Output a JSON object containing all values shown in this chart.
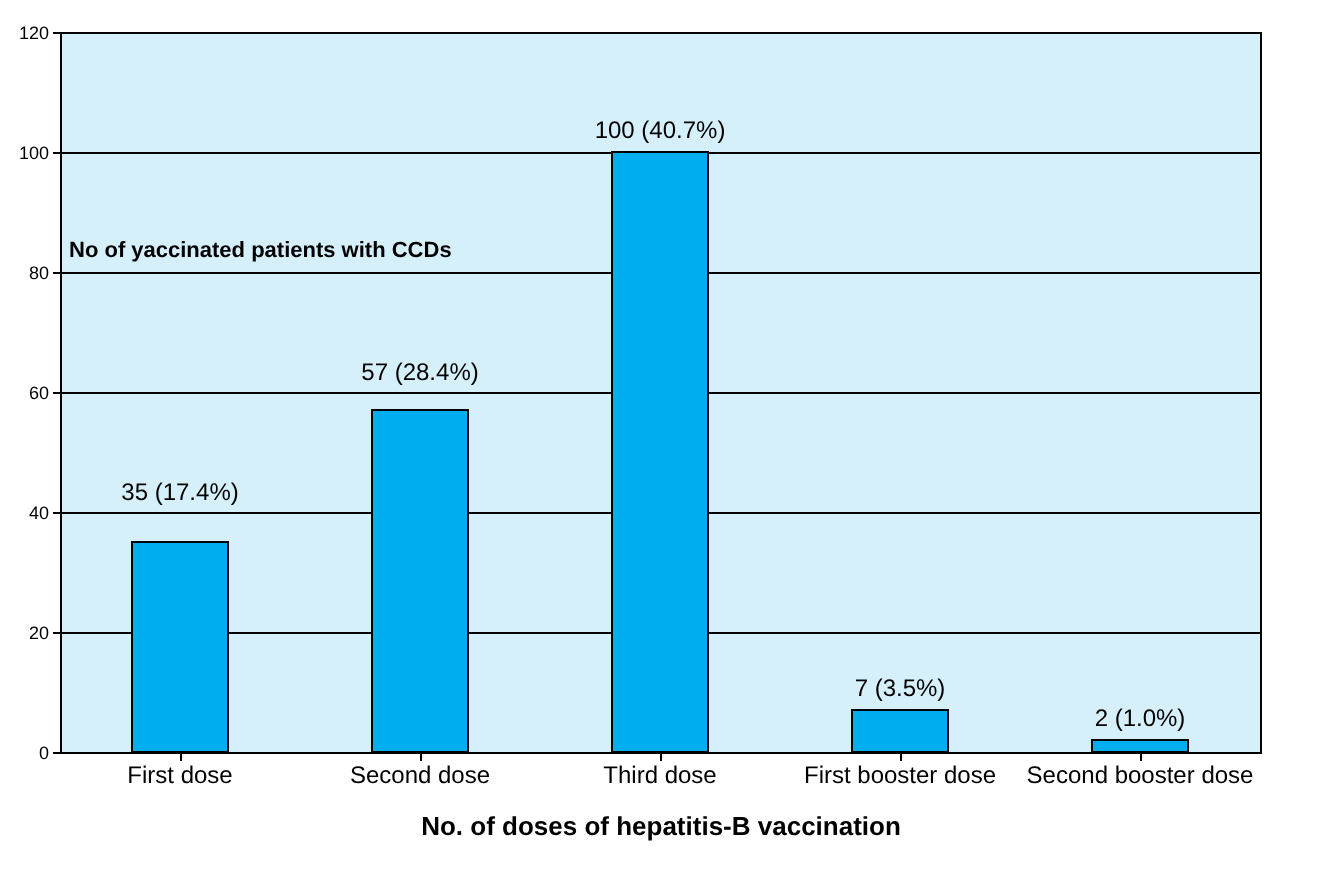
{
  "chart_data": {
    "type": "bar",
    "xlabel": "No. of doses of hepatitis-B vaccination",
    "ylabel": "No  of yaccinated patients with CCDs",
    "categories": [
      "First dose",
      "Second dose",
      "Third dose",
      "First booster dose",
      "Second booster dose"
    ],
    "values": [
      35,
      57,
      100,
      7,
      2
    ],
    "color": "#00aeef",
    "value_labels": [
      "35 (17.4%)",
      "57 (28.4%)",
      "100 (40.7%)",
      "7 (3.5%)",
      "2 (1.0%)"
    ],
    "ylim": [
      0,
      120
    ],
    "yticks": [
      0,
      20,
      40,
      60,
      80,
      100,
      120
    ],
    "grid": "y"
  }
}
